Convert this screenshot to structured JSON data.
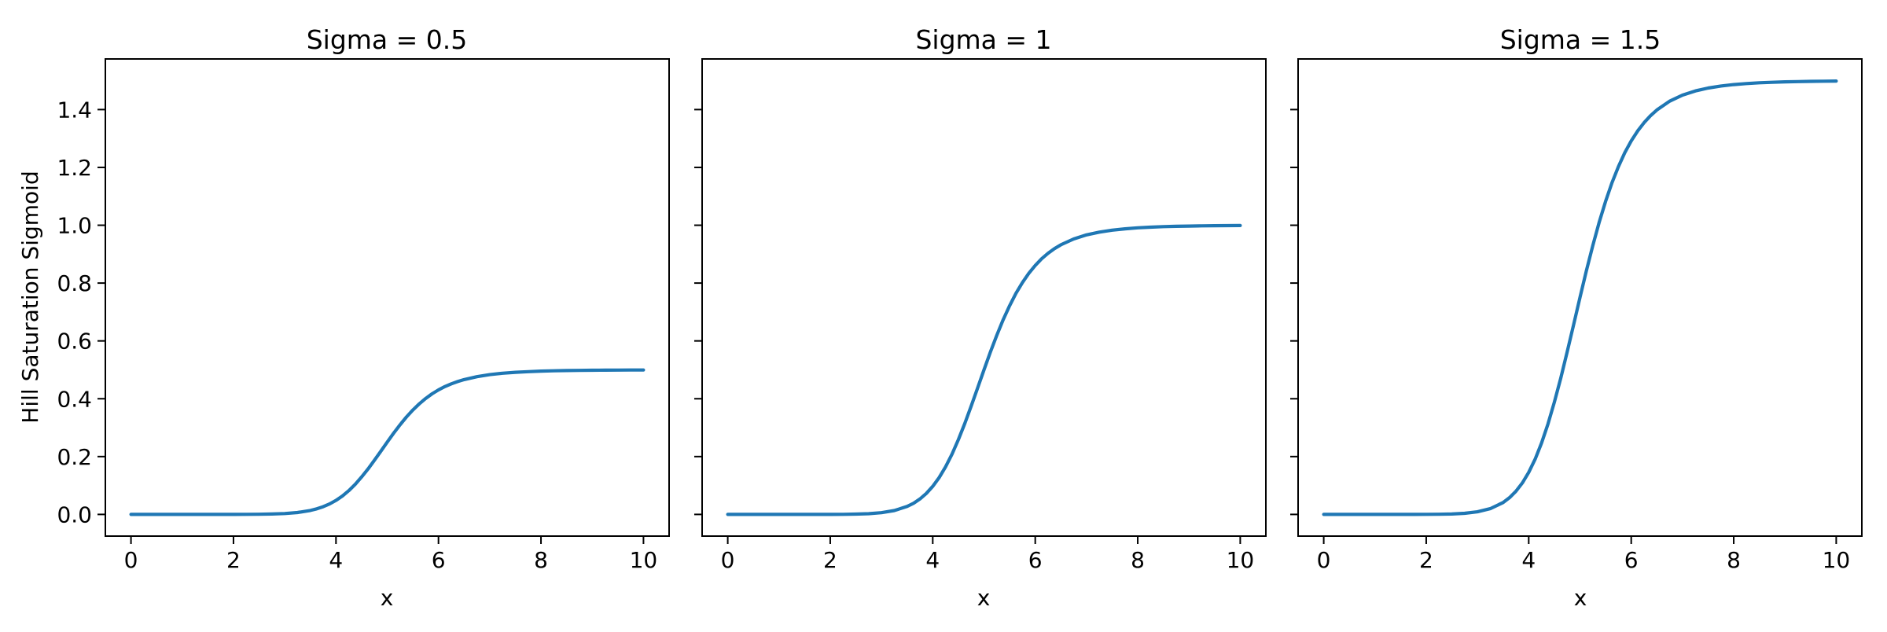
{
  "figure": {
    "background": "#ffffff",
    "line_color": "#1f77b4",
    "spine_color": "#000000",
    "text_color": "#000000"
  },
  "chart_data": [
    {
      "type": "line",
      "title": "Sigma = 0.5",
      "xlabel": "x",
      "ylabel": "Hill Saturation Sigmoid",
      "sigma": 0.5,
      "xlim": [
        -0.5,
        10.5
      ],
      "ylim": [
        -0.075,
        1.575
      ],
      "grid": false,
      "legend": "none",
      "xticks": [
        0,
        2,
        4,
        6,
        8,
        10
      ],
      "xtick_labels": [
        "0",
        "2",
        "4",
        "6",
        "8",
        "10"
      ],
      "yticks": [
        0.0,
        0.2,
        0.4,
        0.6,
        0.8,
        1.0,
        1.2,
        1.4
      ],
      "ytick_labels": [
        "0.0",
        "0.2",
        "0.4",
        "0.6",
        "0.8",
        "1.0",
        "1.2",
        "1.4"
      ],
      "ytick_labels_visible": true,
      "x": [
        0,
        0.25,
        0.5,
        0.75,
        1,
        1.25,
        1.5,
        1.75,
        2,
        2.25,
        2.5,
        2.75,
        3,
        3.25,
        3.5,
        3.625,
        3.75,
        3.875,
        4,
        4.125,
        4.25,
        4.375,
        4.5,
        4.625,
        4.75,
        4.875,
        5,
        5.125,
        5.25,
        5.375,
        5.5,
        5.625,
        5.75,
        5.875,
        6,
        6.125,
        6.25,
        6.375,
        6.5,
        6.75,
        7,
        7.25,
        7.5,
        7.75,
        8,
        8.25,
        8.5,
        8.75,
        9,
        9.25,
        9.5,
        9.75,
        10
      ],
      "values": [
        0,
        0,
        0,
        0,
        0,
        0,
        0,
        0,
        0.0001,
        0.0002,
        0.0005,
        0.0013,
        0.003,
        0.0066,
        0.0137,
        0.0193,
        0.0267,
        0.0363,
        0.0485,
        0.0637,
        0.0822,
        0.1042,
        0.1293,
        0.1572,
        0.1873,
        0.2185,
        0.25,
        0.2807,
        0.3098,
        0.3367,
        0.3609,
        0.3823,
        0.4009,
        0.4169,
        0.4305,
        0.4419,
        0.4515,
        0.4595,
        0.4662,
        0.4763,
        0.4833,
        0.4881,
        0.4915,
        0.4938,
        0.4955,
        0.4967,
        0.4975,
        0.4981,
        0.4986,
        0.4989,
        0.4992,
        0.4994,
        0.4995
      ]
    },
    {
      "type": "line",
      "title": "Sigma = 1",
      "xlabel": "x",
      "ylabel": "",
      "sigma": 1,
      "xlim": [
        -0.5,
        10.5
      ],
      "ylim": [
        -0.075,
        1.575
      ],
      "grid": false,
      "legend": "none",
      "xticks": [
        0,
        2,
        4,
        6,
        8,
        10
      ],
      "xtick_labels": [
        "0",
        "2",
        "4",
        "6",
        "8",
        "10"
      ],
      "yticks": [
        0.0,
        0.2,
        0.4,
        0.6,
        0.8,
        1.0,
        1.2,
        1.4
      ],
      "ytick_labels": [],
      "ytick_labels_visible": false,
      "x": [
        0,
        0.25,
        0.5,
        0.75,
        1,
        1.25,
        1.5,
        1.75,
        2,
        2.25,
        2.5,
        2.75,
        3,
        3.25,
        3.5,
        3.625,
        3.75,
        3.875,
        4,
        4.125,
        4.25,
        4.375,
        4.5,
        4.625,
        4.75,
        4.875,
        5,
        5.125,
        5.25,
        5.375,
        5.5,
        5.625,
        5.75,
        5.875,
        6,
        6.125,
        6.25,
        6.375,
        6.5,
        6.75,
        7,
        7.25,
        7.5,
        7.75,
        8,
        8.25,
        8.5,
        8.75,
        9,
        9.25,
        9.5,
        9.75,
        10
      ],
      "values": [
        0,
        0,
        0,
        0,
        0,
        0,
        0,
        0,
        0.0001,
        0.0003,
        0.001,
        0.0025,
        0.006,
        0.0133,
        0.0275,
        0.0386,
        0.0533,
        0.0725,
        0.097,
        0.1274,
        0.1645,
        0.2083,
        0.2585,
        0.3144,
        0.3745,
        0.437,
        0.5,
        0.5614,
        0.6196,
        0.6733,
        0.7217,
        0.7646,
        0.8018,
        0.8338,
        0.861,
        0.8839,
        0.903,
        0.919,
        0.9324,
        0.9526,
        0.9666,
        0.9762,
        0.983,
        0.9877,
        0.991,
        0.9934,
        0.9951,
        0.9963,
        0.9972,
        0.9979,
        0.9984,
        0.9987,
        0.999
      ]
    },
    {
      "type": "line",
      "title": "Sigma = 1.5",
      "xlabel": "x",
      "ylabel": "",
      "sigma": 1.5,
      "xlim": [
        -0.5,
        10.5
      ],
      "ylim": [
        -0.075,
        1.575
      ],
      "grid": false,
      "legend": "none",
      "xticks": [
        0,
        2,
        4,
        6,
        8,
        10
      ],
      "xtick_labels": [
        "0",
        "2",
        "4",
        "6",
        "8",
        "10"
      ],
      "yticks": [
        0.0,
        0.2,
        0.4,
        0.6,
        0.8,
        1.0,
        1.2,
        1.4
      ],
      "ytick_labels": [],
      "ytick_labels_visible": false,
      "x": [
        0,
        0.25,
        0.5,
        0.75,
        1,
        1.25,
        1.5,
        1.75,
        2,
        2.25,
        2.5,
        2.75,
        3,
        3.25,
        3.5,
        3.625,
        3.75,
        3.875,
        4,
        4.125,
        4.25,
        4.375,
        4.5,
        4.625,
        4.75,
        4.875,
        5,
        5.125,
        5.25,
        5.375,
        5.5,
        5.625,
        5.75,
        5.875,
        6,
        6.125,
        6.25,
        6.375,
        6.5,
        6.75,
        7,
        7.25,
        7.5,
        7.75,
        8,
        8.25,
        8.5,
        8.75,
        9,
        9.25,
        9.5,
        9.75,
        10
      ],
      "values": [
        0,
        0,
        0,
        0,
        0,
        0,
        0,
        0,
        0.0002,
        0.0005,
        0.0015,
        0.0038,
        0.009,
        0.0199,
        0.0412,
        0.0579,
        0.08,
        0.1088,
        0.1454,
        0.1912,
        0.2467,
        0.3125,
        0.3878,
        0.4716,
        0.5618,
        0.6556,
        0.75,
        0.8421,
        0.9294,
        1.01,
        1.0826,
        1.1468,
        1.2027,
        1.2507,
        1.2914,
        1.3258,
        1.3545,
        1.3786,
        1.3986,
        1.4289,
        1.4499,
        1.4644,
        1.4744,
        1.4815,
        1.4865,
        1.49,
        1.4926,
        1.4944,
        1.4958,
        1.4968,
        1.4976,
        1.4981,
        1.4985
      ]
    }
  ]
}
